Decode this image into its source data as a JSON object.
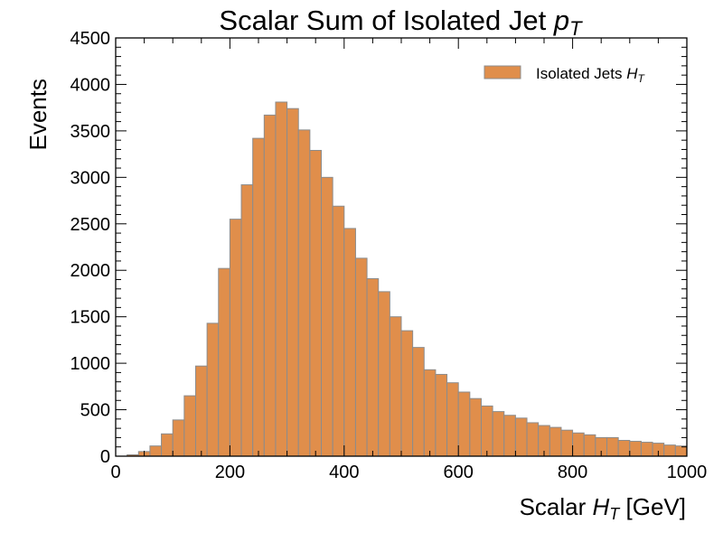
{
  "colors": {
    "bar_fill": "#e08e4b",
    "bar_edge": "#8c8c8c",
    "axis": "#000000"
  },
  "chart_data": {
    "type": "bar",
    "title": "Scalar Sum of Isolated Jet",
    "title_math": "p",
    "title_math_sub": "T",
    "xlabel": "Scalar",
    "xlabel_math": "H",
    "xlabel_math_sub": "T",
    "xlabel_unit": "[GeV]",
    "ylabel": "Events",
    "xlim": [
      0,
      1000
    ],
    "ylim": [
      0,
      4500
    ],
    "bin_width": 20,
    "x_ticks": [
      "0",
      "200",
      "400",
      "600",
      "800",
      "1000"
    ],
    "y_ticks": [
      "0",
      "500",
      "1000",
      "1500",
      "2000",
      "2500",
      "3000",
      "3500",
      "4000",
      "4500"
    ],
    "legend": {
      "label": "Isolated Jets",
      "math": "H",
      "math_sub": "T",
      "position": "top-right"
    },
    "bin_edges_start": [
      0,
      20,
      40,
      60,
      80,
      100,
      120,
      140,
      160,
      180,
      200,
      220,
      240,
      260,
      280,
      300,
      320,
      340,
      360,
      380,
      400,
      420,
      440,
      460,
      480,
      500,
      520,
      540,
      560,
      580,
      600,
      620,
      640,
      660,
      680,
      700,
      720,
      740,
      760,
      780,
      800,
      820,
      840,
      860,
      880,
      900,
      920,
      940,
      960,
      980
    ],
    "values": [
      0,
      15,
      50,
      110,
      240,
      390,
      650,
      970,
      1430,
      2020,
      2550,
      2920,
      3420,
      3670,
      3810,
      3740,
      3510,
      3290,
      3000,
      2690,
      2450,
      2130,
      1910,
      1770,
      1500,
      1350,
      1170,
      930,
      880,
      790,
      690,
      620,
      540,
      480,
      440,
      410,
      360,
      330,
      310,
      280,
      250,
      230,
      200,
      200,
      170,
      160,
      150,
      140,
      120,
      110
    ]
  }
}
